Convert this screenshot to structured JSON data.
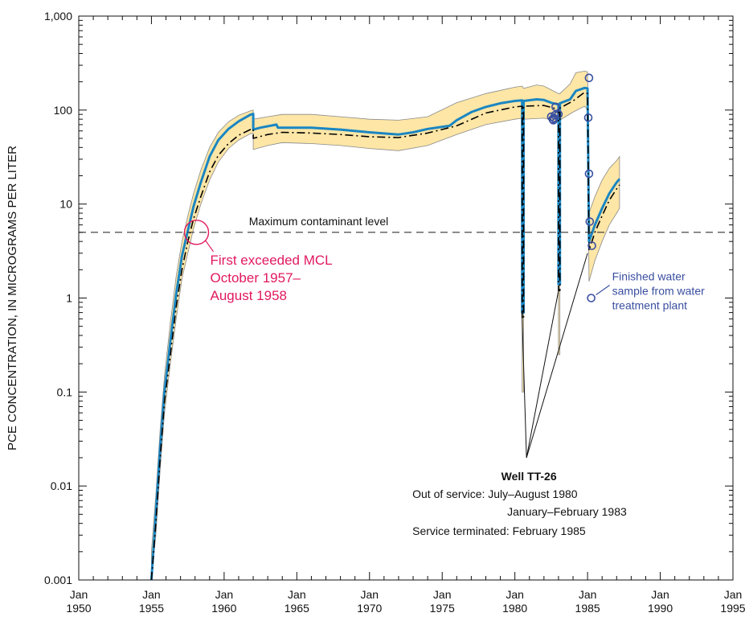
{
  "chart_data": {
    "type": "line",
    "title": "",
    "ylabel": "PCE  CONCENTRATION, IN MICROGRAMS PER LITER",
    "xlabel": "",
    "y_scale": "log",
    "ylim": [
      0.001,
      1000
    ],
    "xlim": [
      1950,
      1995
    ],
    "grid": false,
    "y_ticks": [
      0.001,
      0.01,
      0.1,
      1,
      10,
      100,
      1000
    ],
    "y_tick_labels": [
      "0.001",
      "0.01",
      "0.1",
      "1",
      "10",
      "100",
      "1,000"
    ],
    "x_ticks": [
      1950,
      1955,
      1960,
      1965,
      1970,
      1975,
      1980,
      1985,
      1990,
      1995
    ],
    "x_tick_labels": [
      [
        "Jan",
        "1950"
      ],
      [
        "Jan",
        "1955"
      ],
      [
        "Jan",
        "1960"
      ],
      [
        "Jan",
        "1965"
      ],
      [
        "Jan",
        "1970"
      ],
      [
        "Jan",
        "1975"
      ],
      [
        "Jan",
        "1980"
      ],
      [
        "Jan",
        "1985"
      ],
      [
        "Jan",
        "1990"
      ],
      [
        "Jan",
        "1995"
      ]
    ],
    "mcl": {
      "value": 5,
      "label": "Maximum contaminant level"
    },
    "series": [
      {
        "color": "#1a86c2",
        "points": [
          [
            1955.0,
            0.001
          ],
          [
            1955.3,
            0.005
          ],
          [
            1955.6,
            0.025
          ],
          [
            1955.9,
            0.1
          ],
          [
            1956.3,
            0.35
          ],
          [
            1956.7,
            1.1
          ],
          [
            1957.1,
            2.8
          ],
          [
            1957.5,
            5.2
          ],
          [
            1957.9,
            9.5
          ],
          [
            1958.4,
            17
          ],
          [
            1959.0,
            32
          ],
          [
            1959.6,
            48
          ],
          [
            1960.3,
            63
          ],
          [
            1961.0,
            76
          ],
          [
            1961.8,
            89
          ],
          [
            1962.0,
            91
          ],
          [
            1962.0,
            62
          ],
          [
            1962.5,
            65
          ],
          [
            1963.6,
            70
          ],
          [
            1963.7,
            65
          ],
          [
            1966.0,
            65
          ],
          [
            1968.0,
            62
          ],
          [
            1970.0,
            58
          ],
          [
            1972.0,
            55
          ],
          [
            1973.0,
            58
          ],
          [
            1974.0,
            63
          ],
          [
            1975.5,
            68
          ],
          [
            1976.0,
            78
          ],
          [
            1977.0,
            95
          ],
          [
            1978.0,
            108
          ],
          [
            1979.0,
            118
          ],
          [
            1980.0,
            125
          ],
          [
            1980.5,
            127
          ],
          [
            1980.5,
            0.7
          ],
          [
            1980.6,
            0.7
          ],
          [
            1980.6,
            125
          ],
          [
            1981.5,
            130
          ],
          [
            1982.0,
            128
          ],
          [
            1982.6,
            118
          ],
          [
            1983.0,
            115
          ],
          [
            1983.0,
            1.4
          ],
          [
            1983.1,
            1.4
          ],
          [
            1983.1,
            118
          ],
          [
            1983.8,
            130
          ],
          [
            1984.2,
            160
          ],
          [
            1984.8,
            172
          ],
          [
            1985.0,
            170
          ],
          [
            1985.1,
            4.0
          ],
          [
            1985.5,
            6.0
          ],
          [
            1986.0,
            9.0
          ],
          [
            1986.5,
            13
          ],
          [
            1987.0,
            17
          ],
          [
            1987.2,
            18.5
          ]
        ]
      },
      {
        "color": "#000000",
        "line_style": "dash-dot",
        "points": [
          [
            1955.0,
            0.0008
          ],
          [
            1955.3,
            0.004
          ],
          [
            1955.6,
            0.02
          ],
          [
            1955.9,
            0.08
          ],
          [
            1956.3,
            0.25
          ],
          [
            1956.7,
            0.8
          ],
          [
            1957.1,
            2.0
          ],
          [
            1957.5,
            4.0
          ],
          [
            1957.9,
            7.0
          ],
          [
            1958.4,
            12
          ],
          [
            1959.0,
            22
          ],
          [
            1959.6,
            33
          ],
          [
            1960.3,
            44
          ],
          [
            1961.0,
            54
          ],
          [
            1961.8,
            62
          ],
          [
            1962.0,
            63
          ],
          [
            1962.0,
            50
          ],
          [
            1963.0,
            55
          ],
          [
            1964.0,
            58
          ],
          [
            1966.0,
            57
          ],
          [
            1968.0,
            55
          ],
          [
            1970.0,
            52
          ],
          [
            1972.0,
            51
          ],
          [
            1974.0,
            57
          ],
          [
            1976.0,
            68
          ],
          [
            1978.0,
            93
          ],
          [
            1980.0,
            108
          ],
          [
            1980.5,
            110
          ],
          [
            1980.5,
            0.6
          ],
          [
            1980.6,
            0.6
          ],
          [
            1980.6,
            110
          ],
          [
            1982.0,
            112
          ],
          [
            1983.0,
            102
          ],
          [
            1983.0,
            1.2
          ],
          [
            1983.1,
            1.2
          ],
          [
            1983.1,
            105
          ],
          [
            1984.0,
            125
          ],
          [
            1984.8,
            155
          ],
          [
            1985.0,
            150
          ],
          [
            1985.1,
            3.2
          ],
          [
            1985.5,
            5.0
          ],
          [
            1986.0,
            7.5
          ],
          [
            1986.5,
            11
          ],
          [
            1987.0,
            14.5
          ],
          [
            1987.2,
            16
          ]
        ]
      }
    ],
    "band": {
      "color": "#fde6a6",
      "upper": [
        [
          1955.0,
          0.002
        ],
        [
          1955.3,
          0.008
        ],
        [
          1955.6,
          0.04
        ],
        [
          1955.9,
          0.15
        ],
        [
          1956.3,
          0.55
        ],
        [
          1956.7,
          1.7
        ],
        [
          1957.1,
          4.0
        ],
        [
          1957.5,
          7.5
        ],
        [
          1957.9,
          13
        ],
        [
          1958.4,
          23
        ],
        [
          1959.0,
          40
        ],
        [
          1959.6,
          58
        ],
        [
          1960.3,
          75
        ],
        [
          1961.0,
          88
        ],
        [
          1961.8,
          98
        ],
        [
          1962.0,
          100
        ],
        [
          1962.0,
          80
        ],
        [
          1963.0,
          85
        ],
        [
          1964.0,
          90
        ],
        [
          1966.0,
          90
        ],
        [
          1968.0,
          85
        ],
        [
          1970.0,
          80
        ],
        [
          1972.0,
          78
        ],
        [
          1974.0,
          85
        ],
        [
          1976.0,
          120
        ],
        [
          1978.0,
          150
        ],
        [
          1980.0,
          175
        ],
        [
          1980.5,
          180
        ],
        [
          1980.6,
          170
        ],
        [
          1981.5,
          185
        ],
        [
          1982.0,
          180
        ],
        [
          1983.0,
          150
        ],
        [
          1983.1,
          150
        ],
        [
          1983.8,
          190
        ],
        [
          1984.2,
          250
        ],
        [
          1984.8,
          260
        ],
        [
          1985.0,
          255
        ],
        [
          1985.1,
          8.0
        ],
        [
          1985.5,
          12
        ],
        [
          1986.0,
          18
        ],
        [
          1986.5,
          24
        ],
        [
          1987.0,
          29
        ],
        [
          1987.2,
          32
        ]
      ],
      "lower": [
        [
          1955.0,
          0.0007
        ],
        [
          1955.3,
          0.003
        ],
        [
          1955.6,
          0.015
        ],
        [
          1955.9,
          0.06
        ],
        [
          1956.3,
          0.2
        ],
        [
          1956.7,
          0.6
        ],
        [
          1957.1,
          1.6
        ],
        [
          1957.5,
          3.0
        ],
        [
          1957.9,
          5.5
        ],
        [
          1958.4,
          10
        ],
        [
          1959.0,
          18
        ],
        [
          1959.6,
          28
        ],
        [
          1960.3,
          39
        ],
        [
          1961.0,
          48
        ],
        [
          1961.8,
          56
        ],
        [
          1962.0,
          57
        ],
        [
          1962.0,
          38
        ],
        [
          1963.0,
          42
        ],
        [
          1964.0,
          45
        ],
        [
          1966.0,
          44
        ],
        [
          1968.0,
          42
        ],
        [
          1970.0,
          39
        ],
        [
          1972.0,
          37
        ],
        [
          1974.0,
          42
        ],
        [
          1976.0,
          55
        ],
        [
          1978.0,
          70
        ],
        [
          1980.0,
          80
        ],
        [
          1980.5,
          82
        ],
        [
          1980.5,
          0.1
        ],
        [
          1980.6,
          0.1
        ],
        [
          1980.6,
          80
        ],
        [
          1982.0,
          82
        ],
        [
          1983.0,
          75
        ],
        [
          1983.0,
          0.25
        ],
        [
          1983.1,
          0.25
        ],
        [
          1983.1,
          78
        ],
        [
          1984.0,
          95
        ],
        [
          1984.8,
          110
        ],
        [
          1985.0,
          100
        ],
        [
          1985.1,
          1.5
        ],
        [
          1985.5,
          2.5
        ],
        [
          1986.0,
          4.0
        ],
        [
          1986.5,
          6.0
        ],
        [
          1987.0,
          8.0
        ],
        [
          1987.2,
          9.0
        ]
      ]
    },
    "samples": {
      "color": "#3a4fa0",
      "points": [
        [
          1982.5,
          85
        ],
        [
          1982.6,
          80
        ],
        [
          1982.65,
          78
        ],
        [
          1982.7,
          82
        ],
        [
          1982.75,
          88
        ],
        [
          1982.8,
          108
        ],
        [
          1983.0,
          90
        ],
        [
          1985.1,
          220
        ],
        [
          1985.05,
          83
        ],
        [
          1985.1,
          21
        ],
        [
          1985.15,
          6.5
        ],
        [
          1985.3,
          3.6
        ],
        [
          1985.25,
          1.0
        ]
      ]
    },
    "annotations": {
      "mcl_circle": {
        "x": 1958.1,
        "y": 5
      },
      "first_exceeded": {
        "color": "#e0195f",
        "lines": [
          "First exceeded MCL",
          "October 1957–",
          "August 1958"
        ]
      },
      "finished_water": {
        "color": "#3a4fa0",
        "lines": [
          "Finished water",
          "sample from water",
          "treatment plant"
        ],
        "points_to": [
          1985.25,
          1.0
        ]
      },
      "well": {
        "title": "Well TT-26",
        "line1": "Out of service: July–August 1980",
        "line2": "January–February 1983",
        "line3": "Service terminated: February 1985",
        "pointer_targets": [
          [
            1980.5,
            0.6
          ],
          [
            1983.0,
            1.2
          ],
          [
            1985.0,
            3.0
          ]
        ],
        "pointer_origin": {
          "x": 1980.8,
          "y": 0.02
        }
      }
    }
  }
}
